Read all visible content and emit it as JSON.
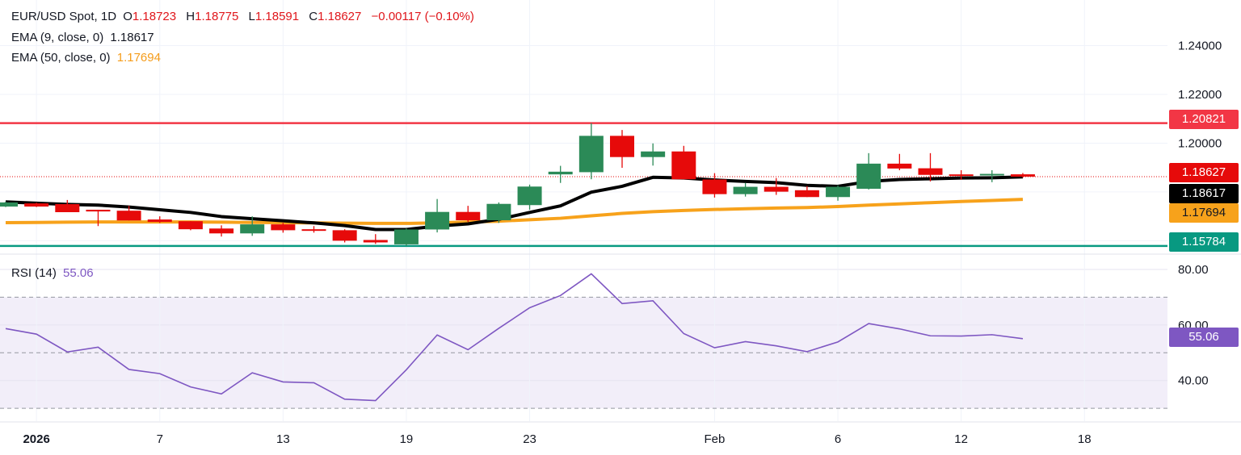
{
  "header": {
    "symbol": "EUR/USD Spot, 1D",
    "o_label": "O",
    "o": "1.18723",
    "h_label": "H",
    "h": "1.18775",
    "l_label": "L",
    "l": "1.18591",
    "c_label": "C",
    "c": "1.18627",
    "change": "−0.00117 (−0.10%)",
    "ema9_label": "EMA (9, close, 0)",
    "ema9_value": "1.18617",
    "ema50_label": "EMA (50, close, 0)",
    "ema50_value": "1.17694",
    "rsi_label": "RSI (14)",
    "rsi_value": "55.06"
  },
  "price_labels": {
    "resistance": "1.20821",
    "last": "1.18627",
    "ema9": "1.18617",
    "ema50": "1.17694",
    "support": "1.15784",
    "rsi": "55.06"
  },
  "colors": {
    "up": "#2b8a57",
    "down": "#e60a0a",
    "ema9": "#000000",
    "ema50": "#f7a21b",
    "resistance": "#f23645",
    "support": "#089981",
    "rsi": "#7e57c2"
  },
  "chart_data": [
    {
      "type": "candlestick",
      "title": "EUR/USD Spot, 1D",
      "dates": [
        "2025-12-31",
        "2026-01-01",
        "2026-01-02",
        "2026-01-05",
        "2026-01-06",
        "2026-01-07",
        "2026-01-08",
        "2026-01-09",
        "2026-01-12",
        "2026-01-13",
        "2026-01-14",
        "2026-01-15",
        "2026-01-16",
        "2026-01-19",
        "2026-01-20",
        "2026-01-21",
        "2026-01-22",
        "2026-01-23",
        "2026-01-26",
        "2026-01-27",
        "2026-01-28",
        "2026-01-29",
        "2026-01-30",
        "2026-02-02",
        "2026-02-03",
        "2026-02-04",
        "2026-02-05",
        "2026-02-06",
        "2026-02-09",
        "2026-02-10",
        "2026-02-11",
        "2026-02-12",
        "2026-02-13",
        "2026-02-16"
      ],
      "ohlc": [
        [
          1.174,
          1.176,
          1.1738,
          1.1757
        ],
        [
          1.1753,
          1.1756,
          1.1738,
          1.174
        ],
        [
          1.175,
          1.1767,
          1.1717,
          1.1717
        ],
        [
          1.1727,
          1.1727,
          1.166,
          1.172
        ],
        [
          1.1723,
          1.1743,
          1.1683,
          1.1683
        ],
        [
          1.1687,
          1.17,
          1.1673,
          1.1677
        ],
        [
          1.168,
          1.168,
          1.1643,
          1.1647
        ],
        [
          1.165,
          1.1663,
          1.1617,
          1.163
        ],
        [
          1.163,
          1.17,
          1.162,
          1.1667
        ],
        [
          1.1667,
          1.1673,
          1.1633,
          1.1643
        ],
        [
          1.1647,
          1.166,
          1.1633,
          1.1643
        ],
        [
          1.1643,
          1.1647,
          1.1593,
          1.16
        ],
        [
          1.1603,
          1.1627,
          1.1587,
          1.1593
        ],
        [
          1.1585,
          1.165,
          1.15784,
          1.1646
        ],
        [
          1.1646,
          1.1771,
          1.1634,
          1.1718
        ],
        [
          1.1718,
          1.1743,
          1.1677,
          1.1684
        ],
        [
          1.1684,
          1.1757,
          1.1673,
          1.1751
        ],
        [
          1.1746,
          1.183,
          1.1727,
          1.1822
        ],
        [
          1.1872,
          1.1907,
          1.1837,
          1.1883
        ],
        [
          1.1881,
          1.20821,
          1.1852,
          1.203
        ],
        [
          1.203,
          1.2054,
          1.1899,
          1.1943
        ],
        [
          1.1943,
          1.1999,
          1.1908,
          1.1966
        ],
        [
          1.1966,
          1.1989,
          1.1852,
          1.1852
        ],
        [
          1.1851,
          1.1877,
          1.1777,
          1.1791
        ],
        [
          1.1791,
          1.1837,
          1.1781,
          1.1821
        ],
        [
          1.1821,
          1.1857,
          1.1788,
          1.1801
        ],
        [
          1.1807,
          1.1824,
          1.1779,
          1.1779
        ],
        [
          1.1779,
          1.1827,
          1.1764,
          1.1821
        ],
        [
          1.1813,
          1.1959,
          1.181,
          1.1916
        ],
        [
          1.1916,
          1.1956,
          1.1889,
          1.1896
        ],
        [
          1.1897,
          1.1959,
          1.1843,
          1.187
        ],
        [
          1.1872,
          1.1889,
          1.185,
          1.1867
        ],
        [
          1.1869,
          1.1889,
          1.184,
          1.1874
        ],
        [
          1.18723,
          1.18775,
          1.18591,
          1.18627
        ]
      ],
      "ema9": [
        1.1759,
        1.1754,
        1.1749,
        1.1746,
        1.1738,
        1.1727,
        1.1716,
        1.1699,
        1.169,
        1.1682,
        1.1673,
        1.1662,
        1.1646,
        1.1646,
        1.166,
        1.1669,
        1.1688,
        1.1716,
        1.1743,
        1.1799,
        1.1823,
        1.186,
        1.1857,
        1.1849,
        1.1843,
        1.1838,
        1.1827,
        1.1823,
        1.1843,
        1.1851,
        1.1854,
        1.1857,
        1.1858,
        1.18617
      ],
      "ema50": [
        1.1674,
        1.1675,
        1.1676,
        1.1677,
        1.1677,
        1.1677,
        1.1677,
        1.1676,
        1.1675,
        1.1674,
        1.1673,
        1.1672,
        1.1671,
        1.1671,
        1.1673,
        1.1677,
        1.168,
        1.1686,
        1.1692,
        1.1702,
        1.1712,
        1.1719,
        1.1724,
        1.1728,
        1.1731,
        1.1734,
        1.1736,
        1.174,
        1.1746,
        1.1751,
        1.1756,
        1.1761,
        1.1765,
        1.17694
      ],
      "hlines": [
        1.20821,
        1.15784
      ],
      "last_price": 1.18627,
      "y_ticks": [
        "1.24000",
        "1.22000",
        "1.20000"
      ],
      "y_tick_values": [
        1.24,
        1.22,
        1.2
      ],
      "ylim": [
        1.1545,
        1.2587
      ],
      "grid": true
    },
    {
      "type": "line",
      "title": "RSI (14)",
      "values": [
        58.7,
        56.7,
        50.3,
        52.0,
        44.0,
        42.5,
        37.7,
        35.2,
        42.8,
        39.5,
        39.2,
        33.3,
        32.8,
        43.9,
        56.4,
        51.1,
        58.8,
        66.2,
        70.6,
        78.4,
        67.7,
        68.7,
        56.9,
        51.8,
        54.0,
        52.5,
        50.4,
        53.9,
        60.5,
        58.6,
        56.1,
        56.0,
        56.5,
        55.06
      ],
      "y_ticks": [
        "80.00",
        "60.00",
        "40.00"
      ],
      "y_tick_values": [
        80,
        60,
        40
      ],
      "bands": [
        70,
        50,
        30
      ],
      "ylim": [
        25.4,
        85.5
      ]
    }
  ],
  "x_ticks": [
    {
      "label": "2026",
      "date": "2026-01-01",
      "bold": true
    },
    {
      "label": "7",
      "date": "2026-01-07"
    },
    {
      "label": "13",
      "date": "2026-01-13"
    },
    {
      "label": "19",
      "date": "2026-01-19"
    },
    {
      "label": "23",
      "date": "2026-01-23"
    },
    {
      "label": "Feb",
      "date": "2026-02-02"
    },
    {
      "label": "6",
      "date": "2026-02-06"
    },
    {
      "label": "12",
      "date": "2026-02-12"
    },
    {
      "label": "18",
      "date": "2026-02-18"
    }
  ]
}
